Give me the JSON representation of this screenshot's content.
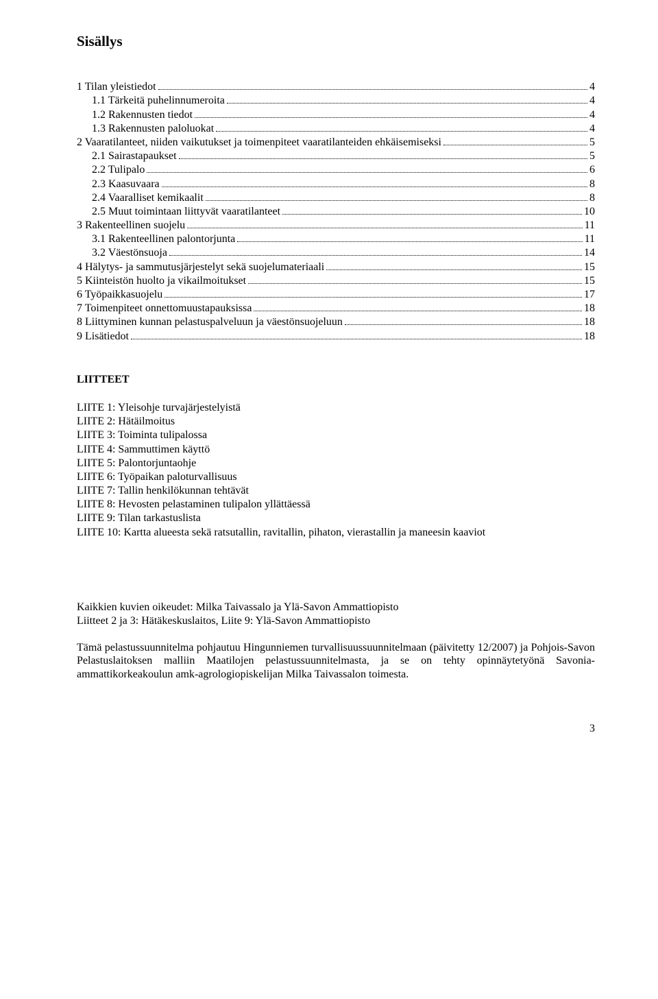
{
  "title": "Sisällys",
  "toc": [
    {
      "label": "1 Tilan yleistiedot",
      "page": "4",
      "indent": 0
    },
    {
      "label": "1.1 Tärkeitä puhelinnumeroita",
      "page": "4",
      "indent": 1
    },
    {
      "label": "1.2 Rakennusten tiedot",
      "page": "4",
      "indent": 1
    },
    {
      "label": "1.3 Rakennusten paloluokat",
      "page": "4",
      "indent": 1
    },
    {
      "label": "2 Vaaratilanteet, niiden vaikutukset ja toimenpiteet vaaratilanteiden ehkäisemiseksi",
      "page": "5",
      "indent": 0
    },
    {
      "label": "2.1 Sairastapaukset",
      "page": "5",
      "indent": 1
    },
    {
      "label": "2.2 Tulipalo",
      "page": "6",
      "indent": 1
    },
    {
      "label": "2.3 Kaasuvaara",
      "page": "8",
      "indent": 1
    },
    {
      "label": "2.4 Vaaralliset kemikaalit",
      "page": "8",
      "indent": 1
    },
    {
      "label": "2.5 Muut toimintaan liittyvät vaaratilanteet",
      "page": "10",
      "indent": 1
    },
    {
      "label": "3 Rakenteellinen suojelu",
      "page": "11",
      "indent": 0
    },
    {
      "label": "3.1 Rakenteellinen palontorjunta",
      "page": "11",
      "indent": 1
    },
    {
      "label": "3.2 Väestönsuoja",
      "page": "14",
      "indent": 1
    },
    {
      "label": "4 Hälytys- ja sammutusjärjestelyt sekä suojelumateriaali",
      "page": "15",
      "indent": 0
    },
    {
      "label": "5 Kiinteistön huolto ja vikailmoitukset",
      "page": "15",
      "indent": 0
    },
    {
      "label": "6 Työpaikkasuojelu",
      "page": "17",
      "indent": 0
    },
    {
      "label": "7 Toimenpiteet onnettomuustapauksissa",
      "page": "18",
      "indent": 0
    },
    {
      "label": "8 Liittyminen kunnan pelastuspalveluun ja väestönsuojeluun",
      "page": "18",
      "indent": 0
    },
    {
      "label": "9 Lisätiedot",
      "page": "18",
      "indent": 0
    }
  ],
  "liitteet_heading": "LIITTEET",
  "liitteet": [
    "LIITE 1: Yleisohje turvajärjestelyistä",
    "LIITE 2: Hätäilmoitus",
    "LIITE 3: Toiminta tulipalossa",
    "LIITE 4: Sammuttimen käyttö",
    "LIITE 5: Palontorjuntaohje",
    "LIITE 6: Työpaikan paloturvallisuus",
    "LIITE 7: Tallin henkilökunnan tehtävät",
    "LIITE 8: Hevosten pelastaminen tulipalon yllättäessä",
    "LIITE 9: Tilan tarkastuslista",
    "LIITE 10: Kartta alueesta sekä ratsutallin, ravitallin, pihaton, vierastallin ja maneesin kaaviot"
  ],
  "credits": [
    "Kaikkien kuvien oikeudet: Milka Taivassalo ja Ylä-Savon Ammattiopisto",
    "Liitteet 2 ja 3: Hätäkeskuslaitos, Liite 9: Ylä-Savon Ammattiopisto"
  ],
  "paragraph": "Tämä pelastussuunnitelma pohjautuu Hingunniemen turvallisuussuunnitelmaan (päivitetty 12/2007) ja Pohjois-Savon Pelastuslaitoksen malliin Maatilojen pelastussuunnitelmasta, ja se on tehty opinnäytetyönä Savonia-ammattikorkeakoulun amk-agrologiopiskelijan Milka Taivassalon toimesta.",
  "page_number": "3"
}
